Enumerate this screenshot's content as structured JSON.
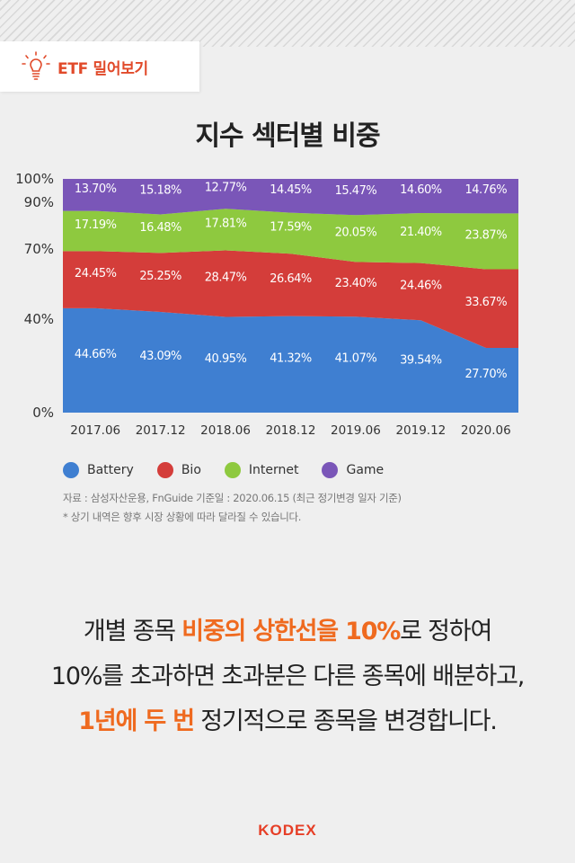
{
  "header": {
    "badge_label": "ETF 밀어보기",
    "icon": "lightbulb-icon",
    "accent_color": "#e14a2a"
  },
  "chart_data": {
    "type": "area",
    "stacked": true,
    "title": "지수 섹터별 비중",
    "categories": [
      "2017.06",
      "2017.12",
      "2018.06",
      "2018.12",
      "2019.06",
      "2019.12",
      "2020.06"
    ],
    "yticks": [
      "100%",
      "90%",
      "70%",
      "40%",
      "0%"
    ],
    "legend_position": "bottom-left",
    "series": [
      {
        "name": "Battery",
        "color": "#3f7fd1",
        "values": [
          44.66,
          43.09,
          40.95,
          41.32,
          41.07,
          39.54,
          27.7
        ],
        "labels": [
          "44.66%",
          "43.09%",
          "40.95%",
          "41.32%",
          "41.07%",
          "39.54%",
          "27.70%"
        ]
      },
      {
        "name": "Bio",
        "color": "#d43d3a",
        "values": [
          24.45,
          25.25,
          28.47,
          26.64,
          23.4,
          24.46,
          33.67
        ],
        "labels": [
          "24.45%",
          "25.25%",
          "28.47%",
          "26.64%",
          "23.40%",
          "24.46%",
          "33.67%"
        ]
      },
      {
        "name": "Internet",
        "color": "#8ec93f",
        "values": [
          17.19,
          16.48,
          17.81,
          17.59,
          20.05,
          21.4,
          23.87
        ],
        "labels": [
          "17.19%",
          "16.48%",
          "17.81%",
          "17.59%",
          "20.05%",
          "21.40%",
          "23.87%"
        ]
      },
      {
        "name": "Game",
        "color": "#7a56b8",
        "values": [
          13.7,
          15.18,
          12.77,
          14.45,
          15.47,
          14.6,
          14.76
        ],
        "labels": [
          "13.70%",
          "15.18%",
          "12.77%",
          "14.45%",
          "15.47%",
          "14.60%",
          "14.76%"
        ]
      }
    ]
  },
  "notes": {
    "source": "자료 : 삼성자산운용, FnGuide 기준일 : 2020.06.15 (최근 정기변경 일자 기준)",
    "disclaimer": "* 상기 내역은 향후 시장 상황에 따라 달라질 수 있습니다."
  },
  "headline": {
    "line1_a": "개별 종목 ",
    "line1_hl": "비중의 상한선을 10%",
    "line1_b": "로 정하여",
    "line2": "10%를 초과하면 초과분은 다른 종목에 배분하고,",
    "line3_hl": "1년에 두 번",
    "line3_b": " 정기적으로 종목을 변경합니다."
  },
  "footer": {
    "brand": "KODEX",
    "brand_color": "#e63e26"
  }
}
